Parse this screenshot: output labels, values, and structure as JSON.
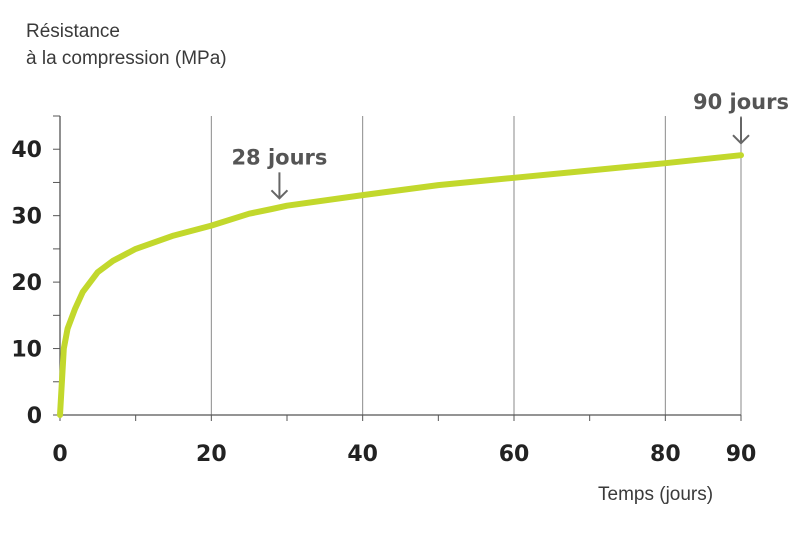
{
  "chart_data": {
    "type": "line",
    "ylabel_line1": "Résistance",
    "ylabel_line2": "à la compression (MPa)",
    "xlabel": "Temps (jours)",
    "xlim": [
      0,
      90
    ],
    "ylim": [
      0,
      45
    ],
    "x_ticks": [
      0,
      20,
      40,
      60,
      80,
      90
    ],
    "y_ticks": [
      0,
      10,
      20,
      30,
      40
    ],
    "grid_x": [
      20,
      40,
      60,
      80,
      90
    ],
    "line_color": "#c2d82c",
    "series": [
      {
        "x": [
          0,
          0.5,
          1,
          2,
          3,
          5,
          7,
          10,
          15,
          20,
          25,
          28,
          30,
          40,
          50,
          60,
          70,
          80,
          90
        ],
        "values": [
          0,
          10,
          13,
          16,
          18.5,
          21.5,
          23.2,
          25,
          27,
          28.5,
          30.3,
          31,
          31.5,
          33.1,
          34.6,
          35.7,
          36.8,
          37.9,
          39.1
        ]
      }
    ],
    "annotations": [
      {
        "text": "28 jours",
        "x": 29,
        "y": 30.8
      },
      {
        "text": "90 jours",
        "x": 90,
        "y": 39.1
      }
    ]
  }
}
